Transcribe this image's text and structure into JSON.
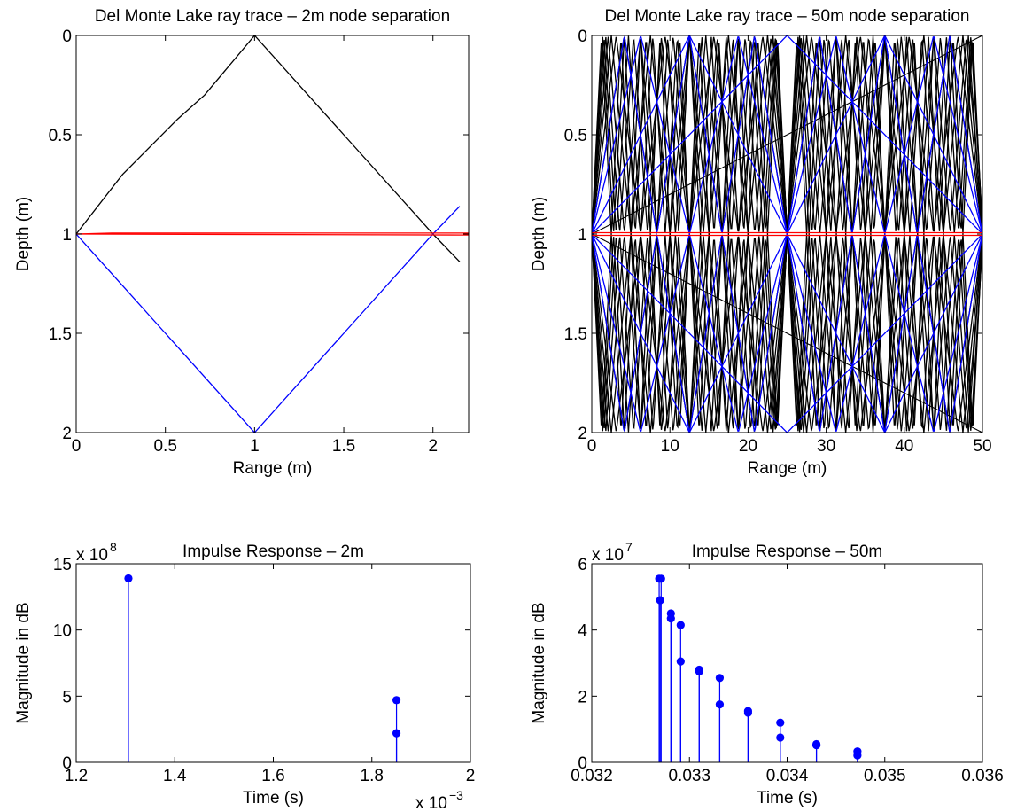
{
  "chart_data": [
    {
      "id": "ray2",
      "type": "line",
      "title": "Del Monte Lake ray trace – 2m node separation",
      "xlabel": "Range (m)",
      "ylabel": "Depth (m)",
      "xlim": [
        0,
        2.2
      ],
      "ylim": [
        0,
        2
      ],
      "y_reversed": true,
      "xticks": [
        0,
        0.5,
        1,
        1.5,
        2
      ],
      "xtick_labels": [
        "0",
        "0.5",
        "1",
        "1.5",
        "2"
      ],
      "yticks": [
        0,
        0.5,
        1,
        1.5,
        2
      ],
      "ytick_labels": [
        "0",
        "0.5",
        "1",
        "1.5",
        "2"
      ],
      "series": [
        {
          "color": "#000000",
          "points": [
            [
              0,
              1
            ],
            [
              0.26,
              0.7
            ],
            [
              0.57,
              0.42
            ],
            [
              0.72,
              0.3
            ],
            [
              1,
              0
            ],
            [
              1.5,
              0.5
            ],
            [
              2,
              1
            ],
            [
              2.15,
              1.14
            ]
          ]
        },
        {
          "color": "#0000ff",
          "points": [
            [
              0,
              1
            ],
            [
              0.5,
              1.5
            ],
            [
              1,
              2
            ],
            [
              1.5,
              1.5
            ],
            [
              2,
              1
            ],
            [
              2.15,
              0.86
            ]
          ]
        },
        {
          "color": "#ff0000",
          "points": [
            [
              0,
              1
            ],
            [
              0.2,
              0.995
            ],
            [
              2.2,
              0.995
            ]
          ]
        },
        {
          "color": "#ff0000",
          "points": [
            [
              0,
              1
            ],
            [
              2.2,
              1.005
            ]
          ]
        }
      ]
    },
    {
      "id": "ray50",
      "type": "line",
      "title": "Del Monte Lake ray trace – 50m node separation",
      "xlabel": "Range (m)",
      "ylabel": "Depth (m)",
      "xlim": [
        0,
        50
      ],
      "ylim": [
        0,
        2
      ],
      "y_reversed": true,
      "xticks": [
        0,
        10,
        20,
        30,
        40,
        50
      ],
      "xtick_labels": [
        "0",
        "10",
        "20",
        "30",
        "40",
        "50"
      ],
      "yticks": [
        0,
        0.5,
        1,
        1.5,
        2
      ],
      "ytick_labels": [
        "0",
        "0.5",
        "1",
        "1.5",
        "2"
      ],
      "ray_fan": {
        "source_depth": 1,
        "depth_range": [
          0,
          2
        ],
        "x_range": [
          0,
          50
        ],
        "black_ray_periods": [
          2.5,
          2.78,
          3.13,
          3.57,
          4.17,
          5,
          6.25,
          8.33
        ],
        "blue_ray_periods": [
          8.33,
          12.5,
          25,
          50
        ],
        "straight_ray_periods": [
          100
        ],
        "direct_path_depth": 1
      }
    },
    {
      "id": "ir2",
      "type": "scatter",
      "subtype": "stem",
      "title": "Impulse Response – 2m",
      "xlabel": "Time (s)",
      "ylabel": "Magnitude in dB",
      "xlim": [
        0.0012,
        0.002
      ],
      "ylim": [
        0,
        1500000000.0
      ],
      "xticks": [
        0.0012,
        0.0014,
        0.0016,
        0.0018,
        0.002
      ],
      "xtick_labels": [
        "1.2",
        "1.4",
        "1.6",
        "1.8",
        "2"
      ],
      "yticks": [
        0,
        500000000.0,
        1000000000.0,
        1500000000.0
      ],
      "ytick_labels": [
        "0",
        "5",
        "10",
        "15"
      ],
      "y_multiplier_label": "x 10",
      "y_multiplier_exp": "8",
      "x_multiplier_label": "x 10",
      "x_multiplier_exp": "−3",
      "color": "#0000ff",
      "points": [
        {
          "x": 0.001306,
          "y": 1390000000.0
        },
        {
          "x": 0.00185,
          "y": 470000000.0
        },
        {
          "x": 0.00185,
          "y": 220000000.0
        }
      ]
    },
    {
      "id": "ir50",
      "type": "scatter",
      "subtype": "stem",
      "title": "Impulse Response – 50m",
      "xlabel": "Time (s)",
      "ylabel": "Magnitude in dB",
      "xlim": [
        0.032,
        0.036
      ],
      "ylim": [
        0,
        60000000.0
      ],
      "xticks": [
        0.032,
        0.033,
        0.034,
        0.035,
        0.036
      ],
      "xtick_labels": [
        "0.032",
        "0.033",
        "0.034",
        "0.035",
        "0.036"
      ],
      "yticks": [
        0,
        20000000.0,
        40000000.0,
        60000000.0
      ],
      "ytick_labels": [
        "0",
        "2",
        "4",
        "6"
      ],
      "y_multiplier_label": "x 10",
      "y_multiplier_exp": "7",
      "color": "#0000ff",
      "points": [
        {
          "x": 0.03269,
          "y": 55500000.0
        },
        {
          "x": 0.03271,
          "y": 55500000.0
        },
        {
          "x": 0.0327,
          "y": 49000000.0
        },
        {
          "x": 0.03281,
          "y": 45000000.0
        },
        {
          "x": 0.03281,
          "y": 43500000.0
        },
        {
          "x": 0.03291,
          "y": 41500000.0
        },
        {
          "x": 0.03291,
          "y": 30500000.0
        },
        {
          "x": 0.0331,
          "y": 28000000.0
        },
        {
          "x": 0.0331,
          "y": 27500000.0
        },
        {
          "x": 0.03331,
          "y": 25500000.0
        },
        {
          "x": 0.03331,
          "y": 17500000.0
        },
        {
          "x": 0.0336,
          "y": 15500000.0
        },
        {
          "x": 0.0336,
          "y": 15000000.0
        },
        {
          "x": 0.03393,
          "y": 12000000.0
        },
        {
          "x": 0.03393,
          "y": 7500000.0
        },
        {
          "x": 0.0343,
          "y": 5500000.0
        },
        {
          "x": 0.0343,
          "y": 5200000.0
        },
        {
          "x": 0.03472,
          "y": 3300000.0
        },
        {
          "x": 0.03472,
          "y": 2100000.0
        }
      ]
    }
  ]
}
